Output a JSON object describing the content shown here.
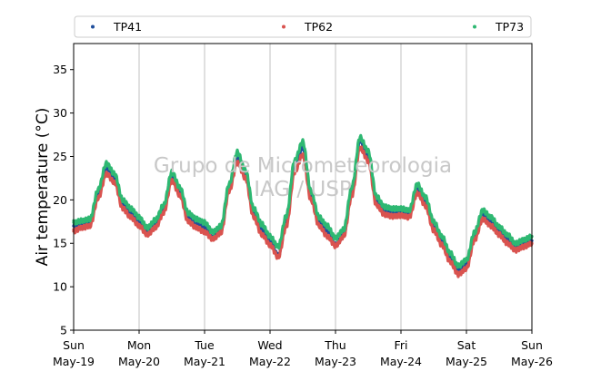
{
  "chart_data": {
    "type": "line",
    "xlabel": "",
    "ylabel": "Air temperature (°C)",
    "ylim": [
      5,
      38
    ],
    "yticks": [
      5,
      10,
      15,
      20,
      25,
      30,
      35
    ],
    "xlim": [
      "2019-05-19 00:00",
      "2019-05-26 00:00"
    ],
    "xticks": [
      {
        "day": "Sun",
        "date": "May-19"
      },
      {
        "day": "Mon",
        "date": "May-20"
      },
      {
        "day": "Tue",
        "date": "May-21"
      },
      {
        "day": "Wed",
        "date": "May-22"
      },
      {
        "day": "Thu",
        "date": "May-23"
      },
      {
        "day": "Fri",
        "date": "May-24"
      },
      {
        "day": "Sat",
        "date": "May-25"
      },
      {
        "day": "Sun",
        "date": "May-26"
      }
    ],
    "grid": "vertical",
    "legend_position": "top",
    "watermark": [
      "Grupo de Micrometeorologia",
      "IAG / USP"
    ],
    "x": [
      "2019-05-19 00:00",
      "2019-05-19 03:00",
      "2019-05-19 06:00",
      "2019-05-19 09:00",
      "2019-05-19 12:00",
      "2019-05-19 15:00",
      "2019-05-19 18:00",
      "2019-05-19 21:00",
      "2019-05-20 00:00",
      "2019-05-20 03:00",
      "2019-05-20 06:00",
      "2019-05-20 09:00",
      "2019-05-20 12:00",
      "2019-05-20 15:00",
      "2019-05-20 18:00",
      "2019-05-20 21:00",
      "2019-05-21 00:00",
      "2019-05-21 03:00",
      "2019-05-21 06:00",
      "2019-05-21 09:00",
      "2019-05-21 12:00",
      "2019-05-21 15:00",
      "2019-05-21 18:00",
      "2019-05-21 21:00",
      "2019-05-22 00:00",
      "2019-05-22 03:00",
      "2019-05-22 06:00",
      "2019-05-22 09:00",
      "2019-05-22 12:00",
      "2019-05-22 15:00",
      "2019-05-22 18:00",
      "2019-05-22 21:00",
      "2019-05-23 00:00",
      "2019-05-23 03:00",
      "2019-05-23 06:00",
      "2019-05-23 09:00",
      "2019-05-23 12:00",
      "2019-05-23 15:00",
      "2019-05-23 18:00",
      "2019-05-23 21:00",
      "2019-05-24 00:00",
      "2019-05-24 03:00",
      "2019-05-24 06:00",
      "2019-05-24 09:00",
      "2019-05-24 12:00",
      "2019-05-24 15:00",
      "2019-05-24 18:00",
      "2019-05-24 21:00",
      "2019-05-25 00:00",
      "2019-05-25 03:00",
      "2019-05-25 06:00",
      "2019-05-25 09:00",
      "2019-05-25 12:00",
      "2019-05-25 15:00",
      "2019-05-25 18:00",
      "2019-05-25 21:00",
      "2019-05-26 00:00"
    ],
    "series": [
      {
        "name": "TP41",
        "color": "#1f4e9c",
        "values": [
          17.0,
          17.2,
          17.3,
          20.8,
          23.8,
          22.5,
          19.5,
          18.5,
          17.5,
          16.2,
          17.2,
          19.0,
          22.8,
          21.0,
          18.0,
          17.3,
          16.8,
          15.6,
          16.5,
          21.5,
          25.0,
          23.0,
          18.5,
          16.5,
          15.2,
          13.6,
          17.5,
          24.0,
          26.0,
          20.5,
          17.5,
          16.3,
          14.8,
          16.0,
          21.0,
          26.8,
          25.0,
          19.8,
          18.8,
          18.6,
          18.6,
          18.4,
          21.3,
          19.8,
          17.0,
          15.2,
          13.2,
          11.8,
          12.5,
          15.8,
          18.2,
          17.5,
          16.5,
          15.5,
          14.5,
          15.0,
          15.3
        ]
      },
      {
        "name": "TP62",
        "color": "#d9534f",
        "values": [
          16.4,
          16.8,
          17.0,
          20.2,
          23.0,
          22.0,
          19.0,
          18.0,
          17.0,
          16.0,
          16.8,
          18.5,
          22.2,
          20.5,
          17.5,
          16.8,
          16.3,
          15.5,
          16.2,
          21.0,
          24.3,
          22.5,
          18.0,
          16.0,
          14.8,
          13.4,
          17.0,
          23.2,
          25.2,
          20.0,
          17.0,
          15.8,
          14.7,
          15.8,
          20.5,
          26.0,
          24.5,
          19.4,
          18.3,
          18.1,
          18.2,
          18.0,
          20.8,
          19.3,
          16.5,
          14.8,
          12.9,
          11.4,
          12.1,
          15.4,
          17.8,
          17.0,
          16.0,
          15.0,
          14.2,
          14.6,
          15.0
        ]
      },
      {
        "name": "TP73",
        "color": "#2eb872",
        "values": [
          17.4,
          17.6,
          17.8,
          21.2,
          24.2,
          23.0,
          20.0,
          19.0,
          18.0,
          16.8,
          17.7,
          19.4,
          23.2,
          21.4,
          18.5,
          17.8,
          17.4,
          16.3,
          17.0,
          21.8,
          25.5,
          23.4,
          19.0,
          17.2,
          15.8,
          14.6,
          18.2,
          24.5,
          26.7,
          21.0,
          18.0,
          17.0,
          15.6,
          16.6,
          21.5,
          27.2,
          25.6,
          20.4,
          19.2,
          19.0,
          19.0,
          18.8,
          21.8,
          20.3,
          17.5,
          15.8,
          13.9,
          12.4,
          13.1,
          16.3,
          18.8,
          18.0,
          16.9,
          16.0,
          15.0,
          15.4,
          15.8
        ]
      }
    ]
  }
}
